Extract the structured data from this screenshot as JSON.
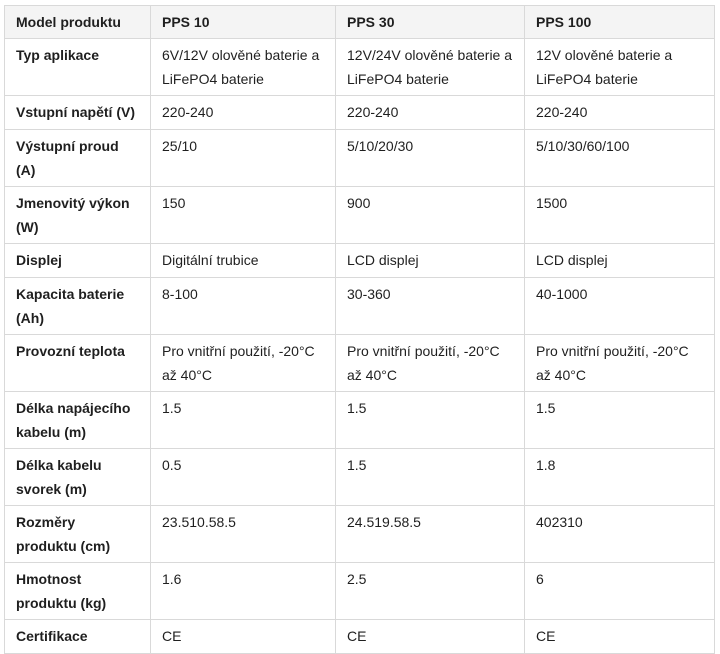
{
  "table": {
    "headers": [
      "Model produktu",
      "PPS 10",
      "PPS 30",
      "PPS 100"
    ],
    "rows": [
      {
        "label": "Typ aplikace",
        "values": [
          "6V/12V olověné baterie a LiFePO4 baterie",
          "12V/24V olověné baterie a LiFePO4 baterie",
          "12V olověné baterie a LiFePO4 baterie"
        ]
      },
      {
        "label": "Vstupní napětí (V)",
        "values": [
          "220-240",
          "220-240",
          "220-240"
        ]
      },
      {
        "label": "Výstupní proud (A)",
        "values": [
          "25/10",
          "5/10/20/30",
          "5/10/30/60/100"
        ]
      },
      {
        "label": "Jmenovitý výkon (W)",
        "values": [
          "150",
          "900",
          "1500"
        ]
      },
      {
        "label": "Displej",
        "values": [
          "Digitální trubice",
          "LCD displej",
          "LCD displej"
        ]
      },
      {
        "label": "Kapacita baterie (Ah)",
        "values": [
          "8-100",
          "30-360",
          "40-1000"
        ]
      },
      {
        "label": "Provozní teplota",
        "values": [
          "Pro vnitřní použití, -20°C až 40°C",
          "Pro vnitřní použití, -20°C až 40°C",
          "Pro vnitřní použití, -20°C až 40°C"
        ]
      },
      {
        "label": "Délka napájecího kabelu (m)",
        "values": [
          "1.5",
          "1.5",
          "1.5"
        ]
      },
      {
        "label": "Délka kabelu svorek (m)",
        "values": [
          "0.5",
          "1.5",
          "1.8"
        ]
      },
      {
        "label": "Rozměry produktu (cm)",
        "values": [
          "23.510.58.5",
          "24.519.58.5",
          "402310"
        ]
      },
      {
        "label": "Hmotnost produktu (kg)",
        "values": [
          "1.6",
          "2.5",
          "6"
        ]
      },
      {
        "label": "Certifikace",
        "values": [
          "CE",
          "CE",
          "CE"
        ]
      }
    ]
  }
}
